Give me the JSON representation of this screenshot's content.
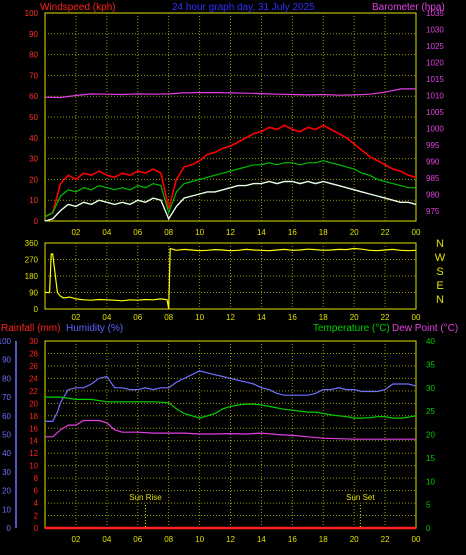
{
  "title": "24 hour graph day, 31 July 2025",
  "colors": {
    "background": "#000000",
    "grid": "#9a9a00",
    "panel_border": "#e0e000",
    "wind_gust": "#ff0000",
    "wind_avg": "#00c000",
    "wind_min": "#e6ffe6",
    "barometer": "#e040e0",
    "wind_dir": "#ffff00",
    "rainfall": "#ff2020",
    "humidity": "#7070ff",
    "temperature": "#00d000",
    "dew_point": "#e040e0",
    "sun_marker": "#e0e000",
    "x_tick_label": "#e0e000"
  },
  "chart_data": [
    {
      "type": "line",
      "panel": "wind-barometer",
      "labels": {
        "left": "Windspeed (kph)",
        "right": "Barometer (hpa)"
      },
      "x_ticks": [
        "02",
        "04",
        "06",
        "08",
        "10",
        "12",
        "14",
        "16",
        "18",
        "20",
        "22",
        "00"
      ],
      "x_range": [
        0,
        24
      ],
      "y_left": {
        "ticks": [
          "0",
          "10",
          "20",
          "30",
          "40",
          "50",
          "60",
          "70",
          "80",
          "90",
          "100"
        ],
        "range": [
          0,
          100
        ]
      },
      "y_right": {
        "ticks": [
          "975",
          "980",
          "985",
          "990",
          "995",
          "1000",
          "1005",
          "1010",
          "1015",
          "1020",
          "1025",
          "1030",
          "1035"
        ],
        "range": [
          972,
          1035
        ]
      },
      "grid": true,
      "series": [
        {
          "key": "gust",
          "axis": "left",
          "x": [
            0,
            0.5,
            1,
            1.5,
            2,
            2.5,
            3,
            3.5,
            4,
            4.5,
            5,
            5.5,
            6,
            6.5,
            7,
            7.5,
            8,
            8.5,
            9,
            9.5,
            10,
            10.5,
            11,
            11.5,
            12,
            12.5,
            13,
            13.5,
            14,
            14.5,
            15,
            15.5,
            16,
            16.5,
            17,
            17.5,
            18,
            18.5,
            19,
            19.5,
            20,
            20.5,
            21,
            21.5,
            22,
            22.5,
            23,
            23.5,
            24
          ],
          "y": [
            2,
            4,
            18,
            22,
            20,
            23,
            22,
            24,
            22,
            21,
            23,
            22,
            24,
            23,
            25,
            23,
            6,
            20,
            26,
            27,
            29,
            32,
            33,
            35,
            36,
            38,
            40,
            42,
            43,
            45,
            44,
            46,
            44,
            43,
            45,
            44,
            46,
            44,
            42,
            40,
            37,
            34,
            31,
            29,
            27,
            25,
            24,
            22,
            21
          ]
        },
        {
          "key": "avg",
          "axis": "left",
          "x": [
            0,
            0.5,
            1,
            1.5,
            2,
            2.5,
            3,
            3.5,
            4,
            4.5,
            5,
            5.5,
            6,
            6.5,
            7,
            7.5,
            8,
            8.5,
            9,
            9.5,
            10,
            10.5,
            11,
            11.5,
            12,
            12.5,
            13,
            13.5,
            14,
            14.5,
            15,
            15.5,
            16,
            16.5,
            17,
            17.5,
            18,
            18.5,
            19,
            19.5,
            20,
            20.5,
            21,
            21.5,
            22,
            22.5,
            23,
            23.5,
            24
          ],
          "y": [
            2,
            4,
            12,
            15,
            14,
            16,
            15,
            17,
            16,
            15,
            16,
            15,
            17,
            16,
            18,
            17,
            4,
            14,
            18,
            19,
            20,
            21,
            22,
            23,
            24,
            25,
            26,
            27,
            27,
            28,
            27,
            28,
            28,
            27,
            28,
            28,
            29,
            28,
            27,
            26,
            25,
            23,
            22,
            20,
            19,
            18,
            17,
            16,
            16
          ]
        },
        {
          "key": "min",
          "axis": "left",
          "x": [
            0,
            0.5,
            1,
            1.5,
            2,
            2.5,
            3,
            3.5,
            4,
            4.5,
            5,
            5.5,
            6,
            6.5,
            7,
            7.5,
            8,
            8.5,
            9,
            9.5,
            10,
            10.5,
            11,
            11.5,
            12,
            12.5,
            13,
            13.5,
            14,
            14.5,
            15,
            15.5,
            16,
            16.5,
            17,
            17.5,
            18,
            18.5,
            19,
            19.5,
            20,
            20.5,
            21,
            21.5,
            22,
            22.5,
            23,
            23.5,
            24
          ],
          "y": [
            0,
            1,
            5,
            8,
            7,
            9,
            8,
            10,
            9,
            8,
            9,
            8,
            10,
            9,
            11,
            10,
            1,
            7,
            11,
            12,
            13,
            14,
            14,
            15,
            16,
            17,
            17,
            18,
            18,
            19,
            18,
            19,
            19,
            18,
            19,
            18,
            19,
            18,
            17,
            16,
            15,
            14,
            13,
            12,
            11,
            10,
            9,
            9,
            8
          ]
        },
        {
          "key": "barometer",
          "axis": "right",
          "x": [
            0,
            1,
            2,
            3,
            4,
            5,
            6,
            7,
            8,
            9,
            10,
            11,
            12,
            13,
            14,
            15,
            16,
            17,
            18,
            19,
            20,
            21,
            22,
            23,
            24
          ],
          "y": [
            1009.5,
            1009.4,
            1010,
            1010.5,
            1010.4,
            1010.3,
            1010.5,
            1010.4,
            1010.5,
            1010.8,
            1010.9,
            1010.9,
            1010.8,
            1010.7,
            1010.6,
            1010.4,
            1010.3,
            1010.2,
            1010.3,
            1010.1,
            1010.2,
            1010.4,
            1011,
            1012,
            1012
          ]
        }
      ]
    },
    {
      "type": "line",
      "panel": "wind-direction",
      "labels": {
        "right_compass": [
          "N",
          "W",
          "S",
          "E",
          "N"
        ]
      },
      "x_ticks": [
        "02",
        "04",
        "06",
        "08",
        "10",
        "12",
        "14",
        "16",
        "18",
        "20",
        "22",
        "00"
      ],
      "x_range": [
        0,
        24
      ],
      "y_left": {
        "ticks": [
          "360",
          "270",
          "180",
          "90",
          "0"
        ],
        "range": [
          0,
          360
        ]
      },
      "grid": true,
      "series": [
        {
          "key": "direction",
          "x": [
            0,
            0.3,
            0.4,
            0.5,
            0.8,
            1,
            1.2,
            1.6,
            2,
            2.5,
            3,
            3.5,
            4,
            4.5,
            5,
            5.5,
            6,
            6.5,
            7,
            7.5,
            7.9,
            8,
            8.1,
            8.5,
            9,
            9.5,
            10,
            10.5,
            11,
            11.5,
            12,
            12.5,
            13,
            13.5,
            14,
            14.5,
            15,
            15.5,
            16,
            16.5,
            17,
            17.5,
            18,
            18.5,
            19,
            19.5,
            20,
            20.5,
            21,
            21.5,
            22,
            22.5,
            23,
            23.5,
            24
          ],
          "y": [
            90,
            90,
            300,
            300,
            90,
            70,
            60,
            65,
            55,
            50,
            48,
            52,
            50,
            48,
            45,
            50,
            48,
            52,
            50,
            55,
            50,
            0,
            330,
            320,
            325,
            322,
            318,
            320,
            324,
            322,
            318,
            320,
            325,
            322,
            320,
            318,
            322,
            325,
            320,
            322,
            326,
            324,
            320,
            322,
            325,
            324,
            330,
            326,
            320,
            318,
            322,
            325,
            320,
            318,
            320
          ]
        }
      ]
    },
    {
      "type": "line",
      "panel": "rain-humidity-temp",
      "labels": {
        "rainfall": "Rainfall (mm)",
        "humidity": "Humidity (%)",
        "temperature": "Temperature (°C)",
        "dew_point": "Dew Point (°C)"
      },
      "x_ticks": [
        "02",
        "04",
        "06",
        "08",
        "10",
        "12",
        "14",
        "16",
        "18",
        "20",
        "22",
        "00"
      ],
      "x_range": [
        0,
        24
      ],
      "y_humidity": {
        "ticks": [
          "0",
          "10",
          "20",
          "30",
          "40",
          "50",
          "60",
          "70",
          "80",
          "90",
          "100"
        ],
        "range": [
          0,
          100
        ]
      },
      "y_rain": {
        "ticks": [
          "0",
          "2",
          "4",
          "6",
          "8",
          "10",
          "12",
          "14",
          "16",
          "18",
          "20",
          "22",
          "24",
          "26",
          "28",
          "30"
        ],
        "range": [
          0,
          30
        ]
      },
      "y_temp": {
        "ticks": [
          "0",
          "5",
          "10",
          "15",
          "20",
          "25",
          "30",
          "35",
          "40"
        ],
        "range": [
          0,
          40
        ]
      },
      "annotations": [
        {
          "text": "Sun Rise",
          "x": 6.5
        },
        {
          "text": "Sun Set",
          "x": 20.4
        }
      ],
      "grid": true,
      "series": [
        {
          "key": "humidity",
          "x": [
            0,
            0.5,
            0.8,
            1,
            1.5,
            2,
            2.5,
            3,
            3.5,
            4,
            4.5,
            5,
            5.5,
            6,
            6.5,
            7,
            7.5,
            8,
            8.5,
            9,
            9.5,
            10,
            10.5,
            11,
            11.5,
            12,
            12.5,
            13,
            13.5,
            14,
            14.5,
            15,
            15.5,
            16,
            16.5,
            17,
            17.5,
            18,
            18.5,
            19,
            19.5,
            20,
            20.5,
            21,
            21.5,
            22,
            22.5,
            23,
            23.5,
            24
          ],
          "y": [
            57,
            57,
            62,
            67,
            74,
            75,
            75,
            77,
            80,
            81,
            75,
            75,
            74,
            74,
            75,
            74,
            75,
            75,
            78,
            80,
            82,
            84,
            83,
            82,
            81,
            80,
            79,
            78,
            77,
            75,
            74,
            72,
            71,
            71,
            71,
            71,
            72,
            74,
            74,
            75,
            74,
            74,
            73,
            73,
            73,
            74,
            77,
            77,
            77,
            76
          ]
        },
        {
          "key": "temperature",
          "x": [
            0,
            1,
            2,
            3,
            4,
            5,
            6,
            7,
            8,
            8.5,
            9,
            9.5,
            10,
            10.5,
            11,
            11.5,
            12,
            12.5,
            13,
            13.5,
            14,
            14.5,
            15,
            15.5,
            16,
            16.5,
            17,
            17.5,
            18,
            18.5,
            19,
            19.5,
            20,
            20.5,
            21,
            21.5,
            22,
            22.5,
            23,
            23.5,
            24
          ],
          "y": [
            28,
            28,
            27.5,
            27.5,
            27,
            27,
            27,
            27,
            26.8,
            25.5,
            24.5,
            24,
            23.5,
            24,
            24.5,
            25.5,
            26,
            26.3,
            26.5,
            26.5,
            26.3,
            26,
            25.7,
            25.4,
            25.2,
            25,
            24.8,
            24.8,
            24.5,
            24.2,
            24,
            23.8,
            23.5,
            23.5,
            23.6,
            23.8,
            23.8,
            23.5,
            23.5,
            23.7,
            24
          ]
        },
        {
          "key": "dew_point",
          "x": [
            0,
            0.5,
            1,
            1.5,
            2,
            2.5,
            3,
            3.5,
            4,
            4.5,
            5,
            6,
            7,
            8,
            9,
            10,
            11,
            12,
            13,
            14,
            15,
            16,
            17,
            18,
            19,
            20,
            21,
            22,
            23,
            24
          ],
          "y": [
            19.5,
            19.5,
            21,
            22,
            22,
            23,
            23,
            23,
            22.5,
            21,
            20.5,
            20.5,
            20.3,
            20.3,
            20.3,
            20.1,
            20.1,
            20.2,
            20.1,
            20.3,
            20,
            19.8,
            19.5,
            19.2,
            19.1,
            19,
            19,
            19,
            19,
            19
          ]
        },
        {
          "key": "rainfall",
          "x": [
            0,
            24
          ],
          "y": [
            0,
            0
          ]
        }
      ]
    }
  ]
}
